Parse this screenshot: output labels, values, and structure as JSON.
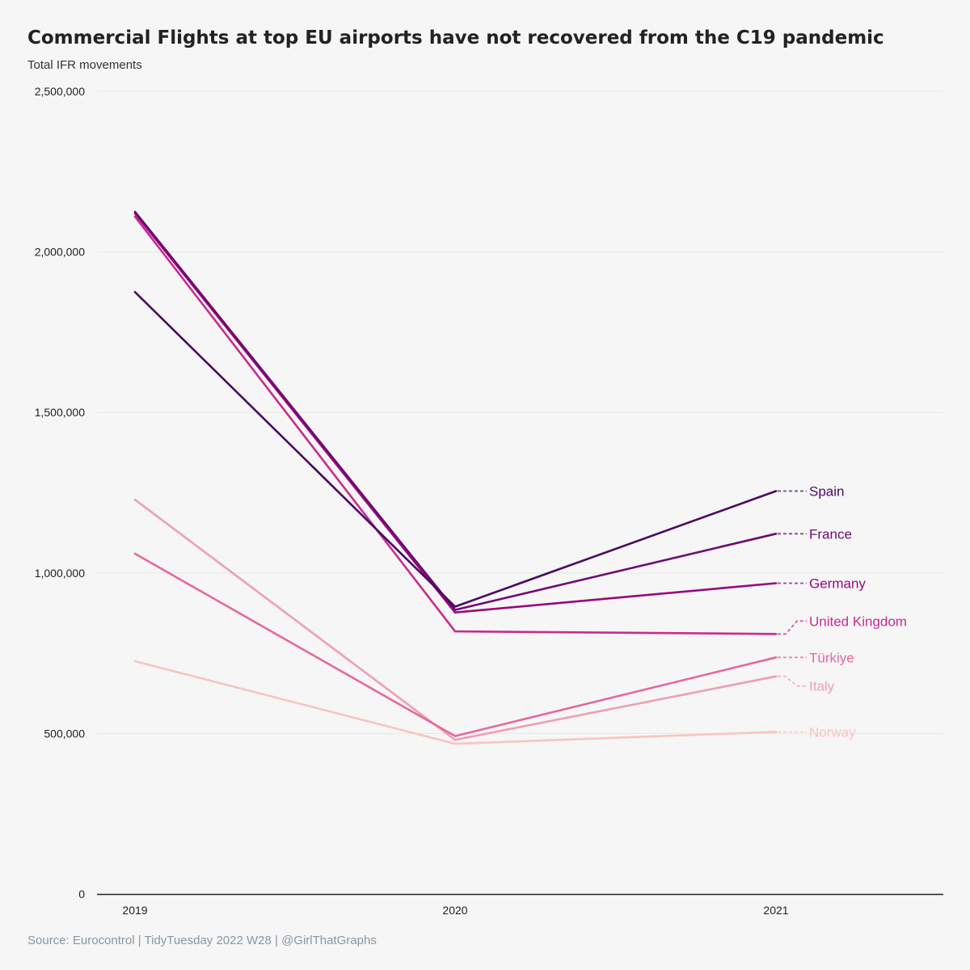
{
  "chart_data": {
    "type": "line",
    "title": "Commercial Flights at top EU airports have not recovered from the C19 pandemic",
    "subtitle": "Total IFR movements",
    "caption": "Source: Eurocontrol | TidyTuesday 2022 W28 | @GirlThatGraphs",
    "x": [
      "2019",
      "2020",
      "2021"
    ],
    "ylim": [
      0,
      2500000
    ],
    "yticks": [
      0,
      500000,
      1000000,
      1500000,
      2000000,
      2500000
    ],
    "ytick_labels": [
      "0",
      "500,000",
      "1,000,000",
      "1,500,000",
      "2,000,000",
      "2,500,000"
    ],
    "grid": "horizontal",
    "legend": "direct labels at line ends (right)",
    "series": [
      {
        "name": "Spain",
        "values": [
          1875000,
          895000,
          1255000
        ],
        "color": "#4a0a63"
      },
      {
        "name": "France",
        "values": [
          2125000,
          885000,
          1122000
        ],
        "color": "#6e0a72"
      },
      {
        "name": "Germany",
        "values": [
          2120000,
          877000,
          968000
        ],
        "color": "#99087d"
      },
      {
        "name": "United Kingdom",
        "values": [
          2110000,
          818000,
          810000
        ],
        "color": "#cb2a8f"
      },
      {
        "name": "Türkiye",
        "values": [
          1060000,
          492000,
          737000
        ],
        "color": "#e568a0"
      },
      {
        "name": "Italy",
        "values": [
          1228000,
          480000,
          678000
        ],
        "color": "#f09eb3"
      },
      {
        "name": "Norway",
        "values": [
          725000,
          468000,
          505000
        ],
        "color": "#f8c4c0"
      }
    ]
  }
}
